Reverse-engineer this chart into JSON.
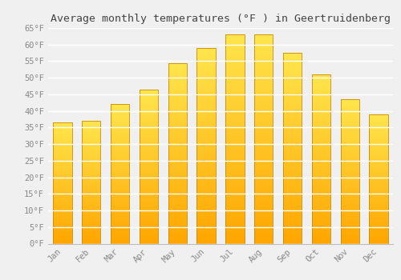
{
  "title": "Average monthly temperatures (°F ) in Geertruidenberg",
  "months": [
    "Jan",
    "Feb",
    "Mar",
    "Apr",
    "May",
    "Jun",
    "Jul",
    "Aug",
    "Sep",
    "Oct",
    "Nov",
    "Dec"
  ],
  "values": [
    36.5,
    37.0,
    42.0,
    46.5,
    54.5,
    59.0,
    63.0,
    63.0,
    57.5,
    51.0,
    43.5,
    39.0
  ],
  "bar_color_bottom": "#FFA500",
  "bar_color_top": "#FFD966",
  "bar_edge_color": "#CC8800",
  "background_color": "#f0f0f0",
  "grid_color": "#ffffff",
  "ylim": [
    0,
    65
  ],
  "yticks": [
    0,
    5,
    10,
    15,
    20,
    25,
    30,
    35,
    40,
    45,
    50,
    55,
    60,
    65
  ],
  "title_fontsize": 9.5,
  "tick_fontsize": 7.5,
  "tick_font_color": "#888888",
  "title_color": "#444444",
  "font_family": "monospace"
}
